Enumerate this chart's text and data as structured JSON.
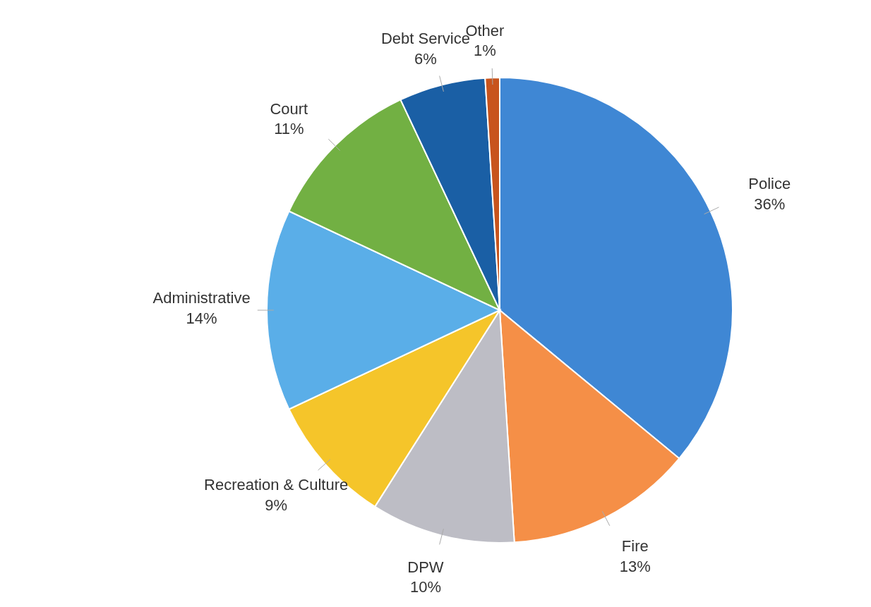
{
  "chart_data": {
    "type": "pie",
    "categories": [
      "Police",
      "Fire",
      "DPW",
      "Recreation & Culture",
      "Administrative",
      "Court",
      "Debt Service",
      "Other"
    ],
    "values": [
      36,
      13,
      10,
      9,
      14,
      11,
      6,
      1
    ],
    "colors": [
      "#3f87d4",
      "#f58f47",
      "#bdbdc5",
      "#f5c52a",
      "#5aaee8",
      "#72b043",
      "#1a5fa5",
      "#c8541d"
    ],
    "value_labels": [
      "36%",
      "13%",
      "10%",
      "9%",
      "14%",
      "11%",
      "6%",
      "1%"
    ]
  }
}
